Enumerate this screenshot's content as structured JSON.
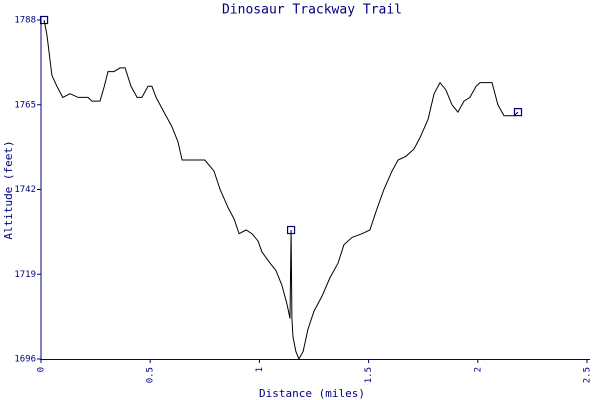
{
  "chart_data": {
    "type": "line",
    "title": "Dinosaur Trackway Trail",
    "x_label": "Distance (miles)",
    "y_label": "Altitude (feet)",
    "xlim": [
      0,
      2.5
    ],
    "xticks": [
      0,
      0.5,
      1,
      1.5,
      2,
      2.5
    ],
    "ylim": [
      1696,
      1788
    ],
    "yticks": [
      1696,
      1719,
      1742,
      1765,
      1788
    ],
    "series": [
      {
        "color": "#000000",
        "x": [
          0.014,
          0.027,
          0.05,
          0.073,
          0.1,
          0.133,
          0.17,
          0.215,
          0.233,
          0.27,
          0.29,
          0.307,
          0.334,
          0.362,
          0.385,
          0.412,
          0.44,
          0.462,
          0.49,
          0.508,
          0.527,
          0.563,
          0.6,
          0.627,
          0.646,
          0.682,
          0.75,
          0.792,
          0.82,
          0.857,
          0.884,
          0.907,
          0.939,
          0.966,
          0.994,
          1.012,
          1.049,
          1.076,
          1.103,
          1.126,
          1.14,
          1.145,
          1.149,
          1.154,
          1.167,
          1.181,
          1.2,
          1.222,
          1.25,
          1.286,
          1.323,
          1.36,
          1.387,
          1.424,
          1.47,
          1.506,
          1.534,
          1.57,
          1.607,
          1.635,
          1.671,
          1.708,
          1.735,
          1.772,
          1.8,
          1.827,
          1.854,
          1.882,
          1.909,
          1.937,
          1.964,
          1.992,
          2.01,
          2.065,
          2.092,
          2.12,
          2.166,
          2.184
        ],
        "values": [
          1788,
          1784,
          1773,
          1770,
          1767,
          1768,
          1767,
          1767,
          1766,
          1766,
          1770,
          1774,
          1774,
          1775,
          1775,
          1770,
          1767,
          1767,
          1770,
          1770,
          1767,
          1763,
          1759,
          1755,
          1750,
          1750,
          1750,
          1747,
          1742,
          1737,
          1734,
          1730,
          1731,
          1730,
          1728,
          1725,
          1722,
          1720,
          1716,
          1711,
          1707,
          1731,
          1707,
          1702,
          1698,
          1696,
          1698,
          1704,
          1709,
          1713,
          1718,
          1722,
          1727,
          1729,
          1730,
          1731,
          1736,
          1742,
          1747,
          1750,
          1751,
          1753,
          1756,
          1761,
          1768,
          1771,
          1769,
          1765,
          1763,
          1766,
          1767,
          1770,
          1771,
          1771,
          1765,
          1762,
          1762,
          1763
        ]
      }
    ],
    "markers": {
      "color": "#000080",
      "x": [
        0.014,
        1.145,
        2.184
      ],
      "values": [
        1788,
        1731,
        1763
      ]
    }
  }
}
